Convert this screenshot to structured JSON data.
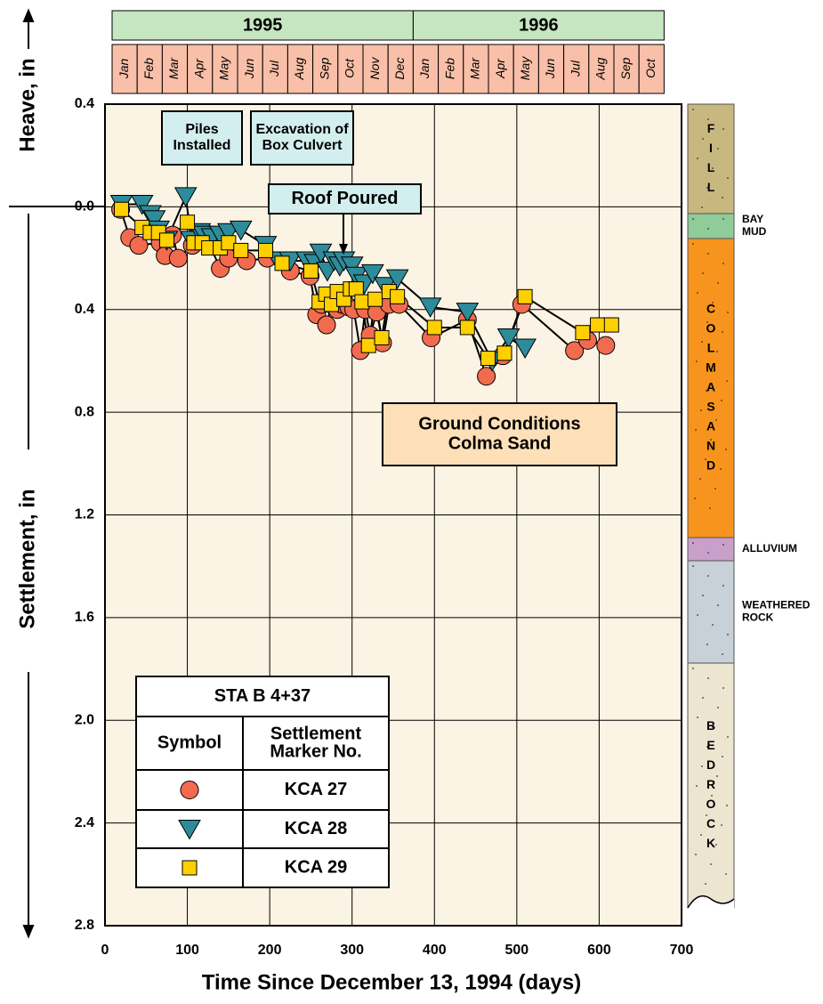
{
  "chart_data": {
    "type": "line",
    "x_label": "Time Since December 13, 1994 (days)",
    "y_label_heave": "Heave, in",
    "y_label_settlement": "Settlement, in",
    "xlim": [
      0,
      700
    ],
    "xticks": [
      0,
      100,
      200,
      300,
      400,
      500,
      600,
      700
    ],
    "ylim": [
      -0.4,
      2.8
    ],
    "yticks": [
      {
        "value": -0.4,
        "label": "0.4"
      },
      {
        "value": 0,
        "label": "0.0"
      },
      0.4,
      0.8,
      1.2,
      1.6,
      {
        "value": 2,
        "label": "2.0"
      },
      2.4,
      2.8
    ],
    "inverted_y": true,
    "grid": true,
    "years": [
      "1995",
      "1996"
    ],
    "months": [
      "Jan",
      "Feb",
      "Mar",
      "Apr",
      "May",
      "Jun",
      "Jul",
      "Aug",
      "Sep",
      "Oct",
      "Nov",
      "Dec",
      "Jan",
      "Feb",
      "Mar",
      "Apr",
      "May",
      "Jun",
      "Jul",
      "Aug",
      "Sep",
      "Oct"
    ],
    "annotations": [
      {
        "lines": [
          "Piles",
          "Installed"
        ]
      },
      {
        "lines": [
          "Excavation of",
          "Box Culvert"
        ]
      },
      {
        "lines": [
          "Roof Poured"
        ]
      },
      {
        "lines": [
          "Ground Conditions",
          "Colma Sand"
        ]
      }
    ],
    "legend_title": "STA B 4+37",
    "legend_headers": [
      [
        "Symbol"
      ],
      [
        "Settlement",
        "Marker No."
      ]
    ],
    "series": [
      {
        "name": "KCA 27",
        "marker": "circle",
        "color": "#f26b4f",
        "x": [
          19,
          30,
          41,
          67,
          73,
          82,
          89,
          106,
          114,
          123,
          140,
          150,
          172,
          197,
          225,
          249,
          257,
          263,
          269,
          275,
          282,
          288,
          296,
          302,
          310,
          316,
          322,
          330,
          337,
          345,
          357,
          396,
          440,
          463,
          483,
          506,
          570,
          586,
          608
        ],
        "values": [
          0.01,
          0.12,
          0.15,
          0.14,
          0.19,
          0.11,
          0.2,
          0.15,
          0.11,
          0.12,
          0.24,
          0.2,
          0.21,
          0.2,
          0.25,
          0.27,
          0.42,
          0.38,
          0.46,
          0.38,
          0.4,
          0.38,
          0.39,
          0.4,
          0.56,
          0.4,
          0.5,
          0.41,
          0.53,
          0.38,
          0.38,
          0.51,
          0.44,
          0.66,
          0.58,
          0.38,
          0.56,
          0.52,
          0.54
        ]
      },
      {
        "name": "KCA 28",
        "marker": "triangle",
        "color": "#2e8b9a",
        "x": [
          20,
          45,
          55,
          60,
          65,
          75,
          98,
          105,
          115,
          120,
          130,
          140,
          150,
          165,
          195,
          210,
          225,
          245,
          255,
          262,
          270,
          278,
          285,
          290,
          300,
          305,
          315,
          325,
          340,
          355,
          395,
          440,
          470,
          490,
          510
        ],
        "values": [
          -0.01,
          -0.01,
          0.03,
          0.05,
          0.09,
          0.13,
          -0.04,
          0.13,
          0.1,
          0.11,
          0.12,
          0.11,
          0.1,
          0.09,
          0.15,
          0.21,
          0.21,
          0.21,
          0.22,
          0.18,
          0.25,
          0.21,
          0.23,
          0.21,
          0.23,
          0.27,
          0.3,
          0.26,
          0.31,
          0.28,
          0.39,
          0.41,
          0.6,
          0.51,
          0.55
        ]
      },
      {
        "name": "KCA 29",
        "marker": "square",
        "color": "#ffd000",
        "x": [
          20,
          45,
          55,
          65,
          75,
          100,
          108,
          118,
          126,
          140,
          150,
          165,
          195,
          215,
          250,
          260,
          268,
          275,
          282,
          290,
          298,
          305,
          312,
          320,
          328,
          336,
          345,
          355,
          400,
          440,
          465,
          485,
          510,
          580,
          598,
          615
        ],
        "values": [
          0.01,
          0.08,
          0.1,
          0.1,
          0.13,
          0.06,
          0.14,
          0.14,
          0.16,
          0.16,
          0.14,
          0.17,
          0.17,
          0.22,
          0.25,
          0.37,
          0.34,
          0.38,
          0.33,
          0.36,
          0.32,
          0.32,
          0.37,
          0.54,
          0.36,
          0.51,
          0.33,
          0.35,
          0.47,
          0.47,
          0.59,
          0.57,
          0.35,
          0.49,
          0.46,
          0.46
        ]
      }
    ],
    "soil_layers": [
      {
        "letters": [
          "F",
          "I",
          "L",
          "L"
        ],
        "color": "#c8b880"
      },
      {
        "side": [
          "BAY",
          "MUD"
        ],
        "color": "#8fcc99"
      },
      {
        "letters": [
          "C",
          "O",
          "L",
          "M",
          "A",
          "S",
          "A",
          "N",
          "D"
        ],
        "color": "#f7941d"
      },
      {
        "side": [
          "ALLUVIUM"
        ],
        "color": "#c9a0c9"
      },
      {
        "side": [
          "WEATHERED",
          "ROCK"
        ],
        "color": "#c8d0d8"
      },
      {
        "letters": [
          "B",
          "E",
          "D",
          "R",
          "O",
          "C",
          "K"
        ],
        "color": "#ece6d0"
      }
    ]
  }
}
